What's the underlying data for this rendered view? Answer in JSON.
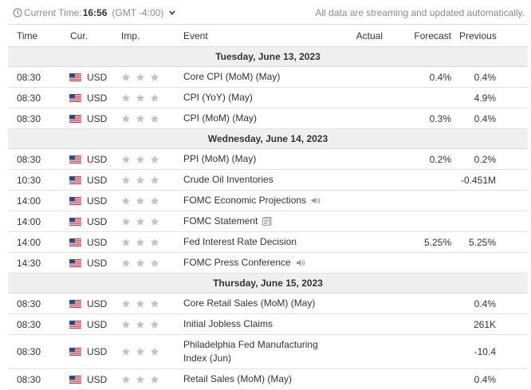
{
  "header": {
    "time_label": "Current Time:",
    "time_value": "16:56",
    "timezone": "(GMT -4:00)",
    "streaming_note": "All data are streaming and updated automatically."
  },
  "columns": {
    "time": "Time",
    "currency": "Cur.",
    "importance": "Imp.",
    "event": "Event",
    "actual": "Actual",
    "forecast": "Forecast",
    "previous": "Previous"
  },
  "days": [
    {
      "date": "Tuesday, June 13, 2023",
      "events": [
        {
          "time": "08:30",
          "currency": "USD",
          "event": "Core CPI (MoM) (May)",
          "actual": "",
          "forecast": "0.4%",
          "previous": "0.4%",
          "icon": ""
        },
        {
          "time": "08:30",
          "currency": "USD",
          "event": "CPI (YoY) (May)",
          "actual": "",
          "forecast": "",
          "previous": "4.9%",
          "icon": ""
        },
        {
          "time": "08:30",
          "currency": "USD",
          "event": "CPI (MoM) (May)",
          "actual": "",
          "forecast": "0.3%",
          "previous": "0.4%",
          "icon": ""
        }
      ]
    },
    {
      "date": "Wednesday, June 14, 2023",
      "events": [
        {
          "time": "08:30",
          "currency": "USD",
          "event": "PPI (MoM) (May)",
          "actual": "",
          "forecast": "0.2%",
          "previous": "0.2%",
          "icon": ""
        },
        {
          "time": "10:30",
          "currency": "USD",
          "event": "Crude Oil Inventories",
          "actual": "",
          "forecast": "",
          "previous": "-0.451M",
          "icon": ""
        },
        {
          "time": "14:00",
          "currency": "USD",
          "event": "FOMC Economic Projections",
          "actual": "",
          "forecast": "",
          "previous": "",
          "icon": "speaker-icon"
        },
        {
          "time": "14:00",
          "currency": "USD",
          "event": "FOMC Statement",
          "actual": "",
          "forecast": "",
          "previous": "",
          "icon": "document-icon"
        },
        {
          "time": "14:00",
          "currency": "USD",
          "event": "Fed Interest Rate Decision",
          "actual": "",
          "forecast": "5.25%",
          "previous": "5.25%",
          "icon": ""
        },
        {
          "time": "14:30",
          "currency": "USD",
          "event": "FOMC Press Conference",
          "actual": "",
          "forecast": "",
          "previous": "",
          "icon": "speaker-icon"
        }
      ]
    },
    {
      "date": "Thursday, June 15, 2023",
      "events": [
        {
          "time": "08:30",
          "currency": "USD",
          "event": "Core Retail Sales (MoM) (May)",
          "actual": "",
          "forecast": "",
          "previous": "0.4%",
          "icon": ""
        },
        {
          "time": "08:30",
          "currency": "USD",
          "event": "Initial Jobless Claims",
          "actual": "",
          "forecast": "",
          "previous": "261K",
          "icon": ""
        },
        {
          "time": "08:30",
          "currency": "USD",
          "event": "Philadelphia Fed Manufacturing Index (Jun)",
          "actual": "",
          "forecast": "",
          "previous": "-10.4",
          "icon": "",
          "tall": true
        },
        {
          "time": "08:30",
          "currency": "USD",
          "event": "Retail Sales (MoM) (May)",
          "actual": "",
          "forecast": "",
          "previous": "0.4%",
          "icon": ""
        }
      ]
    }
  ],
  "importance_stars": 3,
  "colors": {
    "star": "#c4c4c4",
    "day_bg": "#efefef",
    "muted_text": "#8a8a8a"
  }
}
